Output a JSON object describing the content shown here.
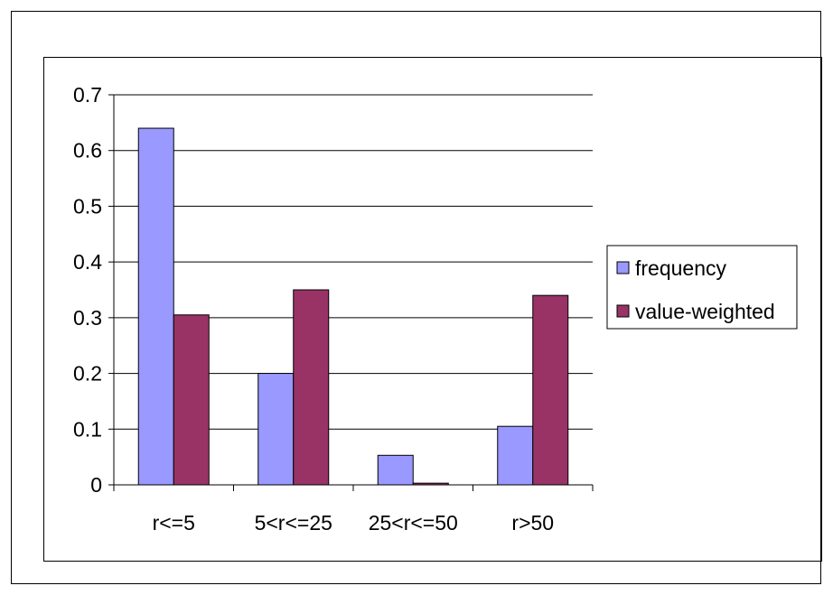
{
  "chart_data": {
    "type": "bar",
    "categories": [
      "r<=5",
      "5<r<=25",
      "25<r<=50",
      "r>50"
    ],
    "series": [
      {
        "name": "frequency",
        "values": [
          0.64,
          0.2,
          0.053,
          0.105
        ],
        "color": "#9999ff"
      },
      {
        "name": "value-weighted",
        "values": [
          0.305,
          0.35,
          0.003,
          0.34
        ],
        "color": "#993366"
      }
    ],
    "ylim": [
      0,
      0.7
    ],
    "y_ticks": [
      "0",
      "0.1",
      "0.2",
      "0.3",
      "0.4",
      "0.5",
      "0.6",
      "0.7"
    ],
    "grid": true,
    "legend_position": "right",
    "title": "",
    "xlabel": "",
    "ylabel": ""
  }
}
